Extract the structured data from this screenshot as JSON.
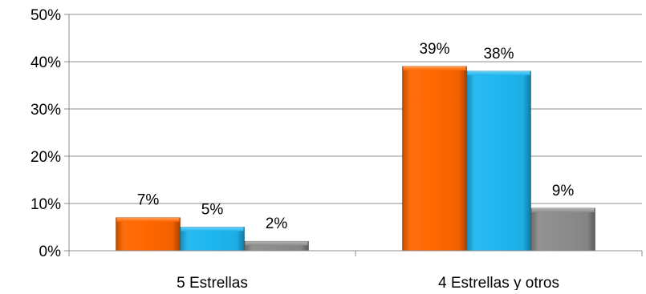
{
  "chart_data": {
    "type": "bar",
    "categories": [
      "5 Estrellas",
      "4 Estrellas y otros"
    ],
    "series": [
      {
        "color": "#ff6600",
        "values": [
          7,
          39
        ]
      },
      {
        "color": "#1fb6f0",
        "values": [
          5,
          38
        ]
      },
      {
        "color": "#8c8c8c",
        "values": [
          2,
          9
        ]
      }
    ],
    "value_labels": [
      [
        "7%",
        "39%"
      ],
      [
        "5%",
        "38%"
      ],
      [
        "2%",
        "9%"
      ]
    ],
    "ylim": [
      0,
      50
    ],
    "y_ticks": [
      0,
      10,
      20,
      30,
      40,
      50
    ],
    "y_tick_labels": [
      "0%",
      "10%",
      "20%",
      "30%",
      "40%",
      "50%"
    ],
    "title": "",
    "xlabel": "",
    "ylabel": "",
    "grid": true,
    "legend": "none"
  }
}
